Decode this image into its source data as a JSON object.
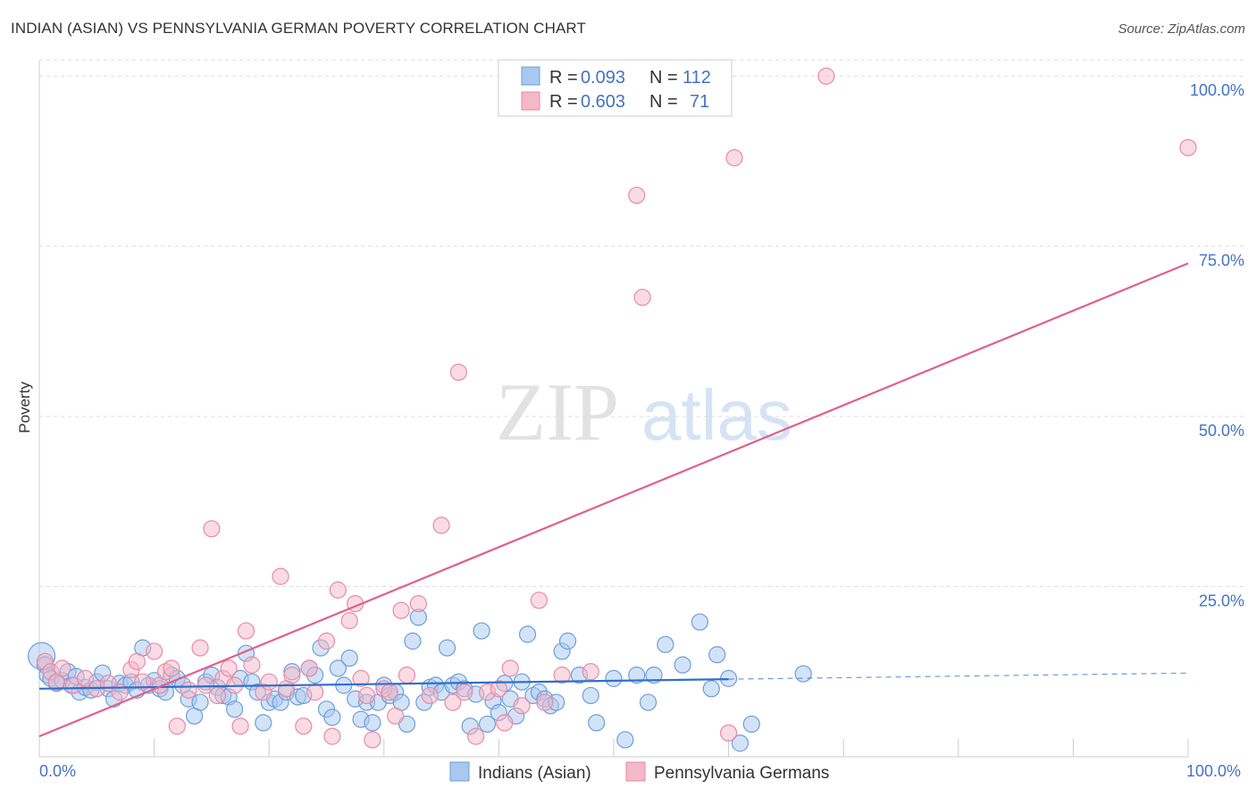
{
  "title": "INDIAN (ASIAN) VS PENNSYLVANIA GERMAN POVERTY CORRELATION CHART",
  "source": "Source: ZipAtlas.com",
  "watermark": {
    "zip": "ZIP",
    "atlas": "atlas"
  },
  "colors": {
    "blue_fill": "#a8c8f0",
    "blue_stroke": "#6d9ed8",
    "blue_line": "#2f6fcc",
    "pink_fill": "#f5b8c8",
    "pink_stroke": "#e88aa5",
    "pink_line": "#e0608a",
    "tick_label": "#4472c4",
    "grid": "#dddddd"
  },
  "legend": {
    "r_label": "R =",
    "n_label": "N =",
    "entries": [
      {
        "r": "0.093",
        "n": "112"
      },
      {
        "r": "0.603",
        "n": "71"
      }
    ]
  },
  "chart_data": {
    "type": "scatter",
    "title": "INDIAN (ASIAN) VS PENNSYLVANIA GERMAN POVERTY CORRELATION CHART",
    "xlabel": "",
    "ylabel": "Poverty",
    "xlim": [
      0,
      100
    ],
    "ylim": [
      0,
      102
    ],
    "x_tick_labels": [
      "0.0%",
      "100.0%"
    ],
    "y_ticks": [
      25,
      50,
      75,
      100
    ],
    "y_tick_labels": [
      "25.0%",
      "50.0%",
      "75.0%",
      "100.0%"
    ],
    "grid": true,
    "legend_position": "top-center",
    "series": [
      {
        "name": "Indians (Asian)",
        "color": "#a8c8f0",
        "trend": {
          "x0": 0,
          "y0": 10.0,
          "x1": 60,
          "y1": 11.4,
          "dashed_to_x": 100,
          "dashed_to_y": 12.3
        },
        "points": [
          [
            0.2,
            14.8
          ],
          [
            0.5,
            13.5
          ],
          [
            0.7,
            12.0
          ],
          [
            1.0,
            11.5
          ],
          [
            1.5,
            10.8
          ],
          [
            2.0,
            11.2
          ],
          [
            2.5,
            12.5
          ],
          [
            2.8,
            10.5
          ],
          [
            3.2,
            11.8
          ],
          [
            3.5,
            9.5
          ],
          [
            4.0,
            10.2
          ],
          [
            4.5,
            9.8
          ],
          [
            5.0,
            11.0
          ],
          [
            5.5,
            12.3
          ],
          [
            6.0,
            10.0
          ],
          [
            6.5,
            8.5
          ],
          [
            7.0,
            10.8
          ],
          [
            7.5,
            10.5
          ],
          [
            8.0,
            11.0
          ],
          [
            8.5,
            9.8
          ],
          [
            9.0,
            16.0
          ],
          [
            9.5,
            10.5
          ],
          [
            10.0,
            11.2
          ],
          [
            10.5,
            10.0
          ],
          [
            11.0,
            9.5
          ],
          [
            11.5,
            12.0
          ],
          [
            12.0,
            11.5
          ],
          [
            12.5,
            10.5
          ],
          [
            13.0,
            8.5
          ],
          [
            13.5,
            6.0
          ],
          [
            14.0,
            8.0
          ],
          [
            14.5,
            11.0
          ],
          [
            15.0,
            12.0
          ],
          [
            15.5,
            10.2
          ],
          [
            16.0,
            9.0
          ],
          [
            16.5,
            8.8
          ],
          [
            17.0,
            7.0
          ],
          [
            17.5,
            11.5
          ],
          [
            18.0,
            15.2
          ],
          [
            18.5,
            11.0
          ],
          [
            19.0,
            9.5
          ],
          [
            19.5,
            5.0
          ],
          [
            20.0,
            8.0
          ],
          [
            20.5,
            8.5
          ],
          [
            21.0,
            8.0
          ],
          [
            21.5,
            9.5
          ],
          [
            22.0,
            12.5
          ],
          [
            22.5,
            8.8
          ],
          [
            23.0,
            9.0
          ],
          [
            23.5,
            13.0
          ],
          [
            24.0,
            12.0
          ],
          [
            24.5,
            16.0
          ],
          [
            25.0,
            7.0
          ],
          [
            25.5,
            5.8
          ],
          [
            26.0,
            13.0
          ],
          [
            26.5,
            10.5
          ],
          [
            27.0,
            14.5
          ],
          [
            27.5,
            8.5
          ],
          [
            28.0,
            5.5
          ],
          [
            28.5,
            8.0
          ],
          [
            29.0,
            5.0
          ],
          [
            29.5,
            8.0
          ],
          [
            30.0,
            10.5
          ],
          [
            30.5,
            9.0
          ],
          [
            31.0,
            9.5
          ],
          [
            31.5,
            8.0
          ],
          [
            32.0,
            4.8
          ],
          [
            32.5,
            17.0
          ],
          [
            33.0,
            20.5
          ],
          [
            33.5,
            8.0
          ],
          [
            34.0,
            10.2
          ],
          [
            34.5,
            10.5
          ],
          [
            35.0,
            9.5
          ],
          [
            35.5,
            16.0
          ],
          [
            36.0,
            10.5
          ],
          [
            36.5,
            11.0
          ],
          [
            37.0,
            10.0
          ],
          [
            37.5,
            4.5
          ],
          [
            38.0,
            9.2
          ],
          [
            38.5,
            18.5
          ],
          [
            39.0,
            4.8
          ],
          [
            39.5,
            8.2
          ],
          [
            40.0,
            6.5
          ],
          [
            40.5,
            10.8
          ],
          [
            41.0,
            8.5
          ],
          [
            41.5,
            6.0
          ],
          [
            42.0,
            11.0
          ],
          [
            42.5,
            18.0
          ],
          [
            43.0,
            9.0
          ],
          [
            43.5,
            9.5
          ],
          [
            44.0,
            8.5
          ],
          [
            44.5,
            7.5
          ],
          [
            45.0,
            8.0
          ],
          [
            45.5,
            15.5
          ],
          [
            46.0,
            17.0
          ],
          [
            47.0,
            12.0
          ],
          [
            48.0,
            9.0
          ],
          [
            48.5,
            5.0
          ],
          [
            50.0,
            11.5
          ],
          [
            51.0,
            2.5
          ],
          [
            52.0,
            12.0
          ],
          [
            53.0,
            8.0
          ],
          [
            53.5,
            12.0
          ],
          [
            54.5,
            16.5
          ],
          [
            56.0,
            13.5
          ],
          [
            57.5,
            19.8
          ],
          [
            58.5,
            10.0
          ],
          [
            59.0,
            15.0
          ],
          [
            60.0,
            11.5
          ],
          [
            61.0,
            2.0
          ],
          [
            62.0,
            4.8
          ],
          [
            66.5,
            12.2
          ]
        ]
      },
      {
        "name": "Pennsylvania Germans",
        "color": "#f5b8c8",
        "trend": {
          "x0": 0,
          "y0": 3.0,
          "x1": 100,
          "y1": 72.5
        },
        "points": [
          [
            0.5,
            14.0
          ],
          [
            1.0,
            12.5
          ],
          [
            1.5,
            11.0
          ],
          [
            2.0,
            13.0
          ],
          [
            3.0,
            10.5
          ],
          [
            4.0,
            11.5
          ],
          [
            5.0,
            10.0
          ],
          [
            6.0,
            10.8
          ],
          [
            7.0,
            9.5
          ],
          [
            8.0,
            12.8
          ],
          [
            8.5,
            14.0
          ],
          [
            9.0,
            11.0
          ],
          [
            10.0,
            15.5
          ],
          [
            10.5,
            10.5
          ],
          [
            11.0,
            12.5
          ],
          [
            11.5,
            13.0
          ],
          [
            12.0,
            4.5
          ],
          [
            13.0,
            9.8
          ],
          [
            14.0,
            16.0
          ],
          [
            14.5,
            10.5
          ],
          [
            15.0,
            33.5
          ],
          [
            15.5,
            9.0
          ],
          [
            16.0,
            11.5
          ],
          [
            16.5,
            13.0
          ],
          [
            17.0,
            10.5
          ],
          [
            17.5,
            4.5
          ],
          [
            18.0,
            18.5
          ],
          [
            18.5,
            13.5
          ],
          [
            19.5,
            9.5
          ],
          [
            20.0,
            11.0
          ],
          [
            21.0,
            26.5
          ],
          [
            21.5,
            10.0
          ],
          [
            22.0,
            12.0
          ],
          [
            23.0,
            4.5
          ],
          [
            23.5,
            13.0
          ],
          [
            24.0,
            9.5
          ],
          [
            25.0,
            17.0
          ],
          [
            25.5,
            3.0
          ],
          [
            26.0,
            24.5
          ],
          [
            27.0,
            20.0
          ],
          [
            27.5,
            22.5
          ],
          [
            28.0,
            11.5
          ],
          [
            28.5,
            9.0
          ],
          [
            29.0,
            2.5
          ],
          [
            30.0,
            10.0
          ],
          [
            30.5,
            9.5
          ],
          [
            31.0,
            6.0
          ],
          [
            31.5,
            21.5
          ],
          [
            32.0,
            12.0
          ],
          [
            33.0,
            22.5
          ],
          [
            34.0,
            9.0
          ],
          [
            35.0,
            34.0
          ],
          [
            36.0,
            8.0
          ],
          [
            36.5,
            56.5
          ],
          [
            37.0,
            9.5
          ],
          [
            38.0,
            3.0
          ],
          [
            39.0,
            9.5
          ],
          [
            40.0,
            10.0
          ],
          [
            40.5,
            5.0
          ],
          [
            41.0,
            13.0
          ],
          [
            42.0,
            7.5
          ],
          [
            43.5,
            23.0
          ],
          [
            44.0,
            8.0
          ],
          [
            45.5,
            12.0
          ],
          [
            48.0,
            12.5
          ],
          [
            52.0,
            82.5
          ],
          [
            52.5,
            67.5
          ],
          [
            60.5,
            88.0
          ],
          [
            60.0,
            3.5
          ],
          [
            68.5,
            100.0
          ],
          [
            100.0,
            89.5
          ]
        ]
      }
    ]
  }
}
